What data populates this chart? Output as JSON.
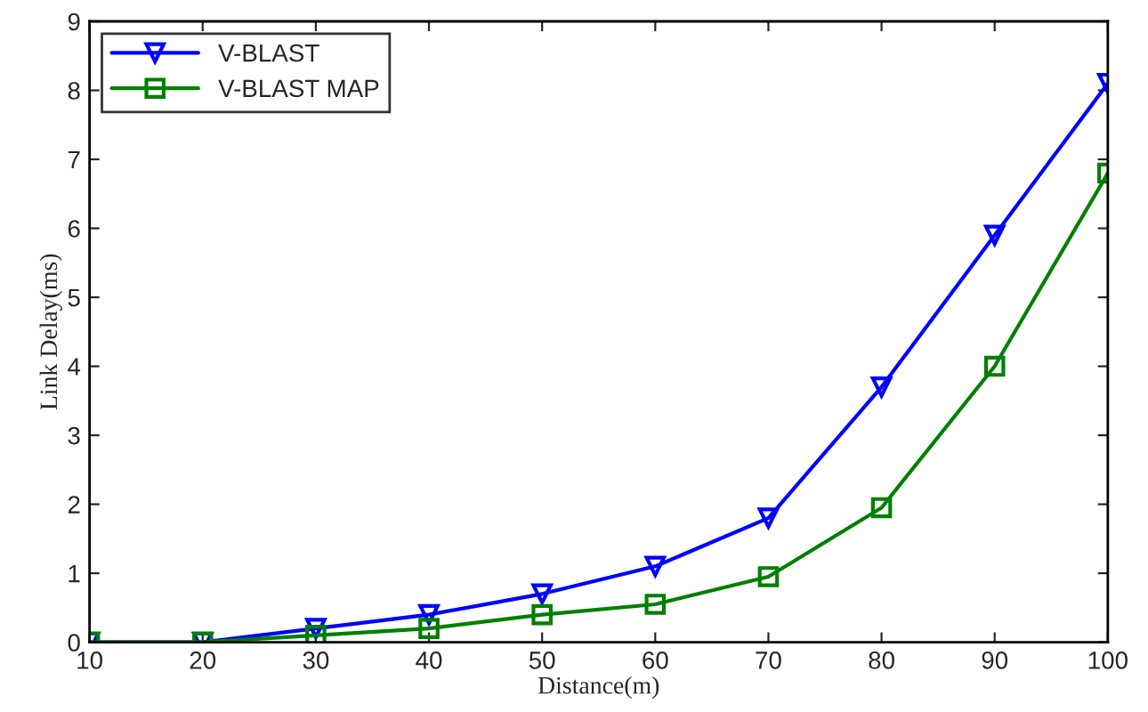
{
  "chart_data": {
    "type": "line",
    "xlabel": "Distance(m)",
    "ylabel": "Link Delay(ms)",
    "x": [
      10,
      20,
      30,
      40,
      50,
      60,
      70,
      80,
      90,
      100
    ],
    "series": [
      {
        "name": "V-BLAST",
        "color": "#0000ff",
        "marker": "triangle",
        "values": [
          0,
          0,
          0.2,
          0.4,
          0.7,
          1.1,
          1.8,
          3.7,
          5.9,
          8.1
        ]
      },
      {
        "name": "V-BLAST MAP",
        "color": "#008000",
        "marker": "square",
        "values": [
          0,
          0,
          0.1,
          0.2,
          0.4,
          0.55,
          0.95,
          1.95,
          4.0,
          6.8
        ]
      }
    ],
    "xlim": [
      10,
      100
    ],
    "xticks": [
      10,
      20,
      30,
      40,
      50,
      60,
      70,
      80,
      90,
      100
    ],
    "ylim": [
      0,
      9
    ],
    "yticks": [
      0,
      1,
      2,
      3,
      4,
      5,
      6,
      7,
      8,
      9
    ],
    "grid": false,
    "legend": "top left",
    "line_style": "solid"
  }
}
